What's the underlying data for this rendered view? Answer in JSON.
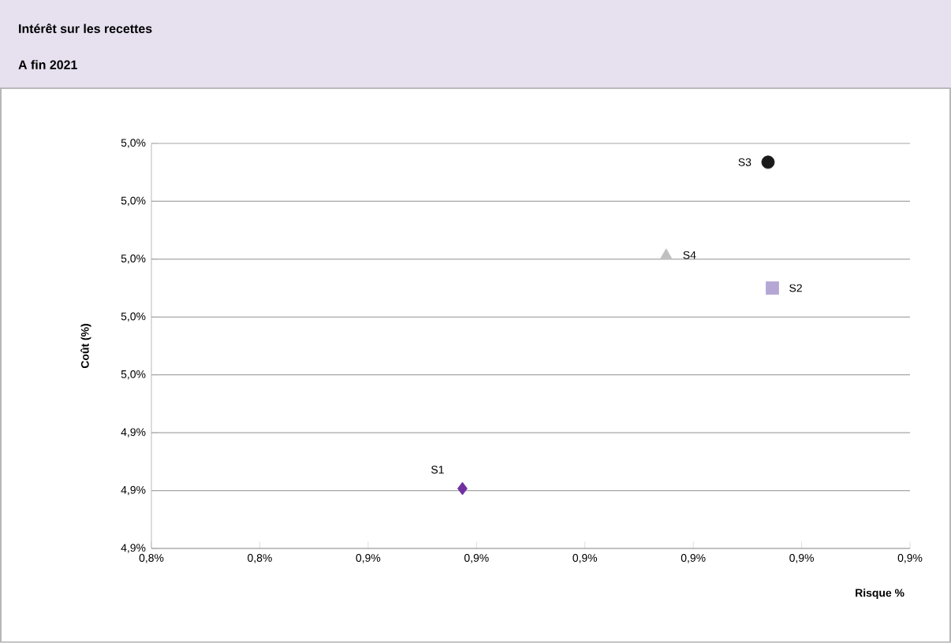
{
  "chart_data": {
    "type": "scatter",
    "title": "Intérêt sur les recettes",
    "subtitle": "A fin 2021",
    "xlabel": "Risque %",
    "ylabel": "Coût (%)",
    "xlim": [
      0.83,
      0.9
    ],
    "xticks": [
      {
        "value": 0.83,
        "label": "0,8%"
      },
      {
        "value": 0.84,
        "label": "0,8%"
      },
      {
        "value": 0.85,
        "label": "0,9%"
      },
      {
        "value": 0.86,
        "label": "0,9%"
      },
      {
        "value": 0.87,
        "label": "0,9%"
      },
      {
        "value": 0.88,
        "label": "0,9%"
      },
      {
        "value": 0.89,
        "label": "0,9%"
      },
      {
        "value": 0.9,
        "label": "0,9%"
      }
    ],
    "ylim": [
      4.9,
      5.04
    ],
    "yticks": [
      {
        "value": 4.9,
        "label": "4,9%"
      },
      {
        "value": 4.92,
        "label": "4,9%"
      },
      {
        "value": 4.94,
        "label": "4,9%"
      },
      {
        "value": 4.96,
        "label": "5,0%"
      },
      {
        "value": 4.98,
        "label": "5,0%"
      },
      {
        "value": 5.0,
        "label": "5,0%"
      },
      {
        "value": 5.02,
        "label": "5,0%"
      },
      {
        "value": 5.04,
        "label": "5,0%"
      }
    ],
    "grid": "y",
    "series": [
      {
        "name": "S1",
        "color": "#7030a0",
        "marker": "diamond",
        "x": [
          0.8587
        ],
        "values": [
          4.9207
        ]
      },
      {
        "name": "S2",
        "color": "#b4a7d6",
        "marker": "square",
        "x": [
          0.8873
        ],
        "values": [
          4.99
        ]
      },
      {
        "name": "S3",
        "color": "#1a1a1a",
        "marker": "circle",
        "x": [
          0.8869
        ],
        "values": [
          5.0335
        ]
      },
      {
        "name": "S4",
        "color": "#bfbfbf",
        "marker": "triangle",
        "x": [
          0.8775
        ],
        "values": [
          5.0014
        ]
      }
    ]
  }
}
